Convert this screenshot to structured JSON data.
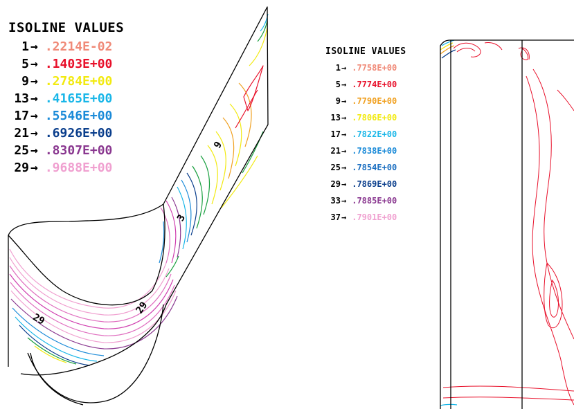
{
  "legend_left": {
    "title": "ISOLINE VALUES",
    "items": [
      {
        "num": "1",
        "value": ".2214E-02",
        "color": "#f08a78"
      },
      {
        "num": "5",
        "value": ".1403E+00",
        "color": "#e8102a"
      },
      {
        "num": "9",
        "value": ".2784E+00",
        "color": "#f2ea10"
      },
      {
        "num": "13",
        "value": ".4165E+00",
        "color": "#18b6e8"
      },
      {
        "num": "17",
        "value": ".5546E+00",
        "color": "#1a8ad8"
      },
      {
        "num": "21",
        "value": ".6926E+00",
        "color": "#0a3e8c"
      },
      {
        "num": "25",
        "value": ".8307E+00",
        "color": "#8a3890"
      },
      {
        "num": "29",
        "value": ".9688E+00",
        "color": "#f0a0d0"
      }
    ]
  },
  "legend_right": {
    "title": "ISOLINE VALUES",
    "items": [
      {
        "num": "1",
        "value": ".7758E+00",
        "color": "#f08a78"
      },
      {
        "num": "5",
        "value": ".7774E+00",
        "color": "#e8102a"
      },
      {
        "num": "9",
        "value": ".7790E+00",
        "color": "#f0a020"
      },
      {
        "num": "13",
        "value": ".7806E+00",
        "color": "#f2ea10"
      },
      {
        "num": "17",
        "value": ".7822E+00",
        "color": "#18b6e8"
      },
      {
        "num": "21",
        "value": ".7838E+00",
        "color": "#1a8ad8"
      },
      {
        "num": "25",
        "value": ".7854E+00",
        "color": "#1a6ec0"
      },
      {
        "num": "29",
        "value": ".7869E+00",
        "color": "#0a3e8c"
      },
      {
        "num": "33",
        "value": ".7885E+00",
        "color": "#8a3890"
      },
      {
        "num": "37",
        "value": ".7901E+00",
        "color": "#f0a0d0"
      }
    ]
  },
  "plot_labels": {
    "label_9": "9",
    "label_3": "3",
    "label_29a": "29",
    "label_29b": "29"
  }
}
